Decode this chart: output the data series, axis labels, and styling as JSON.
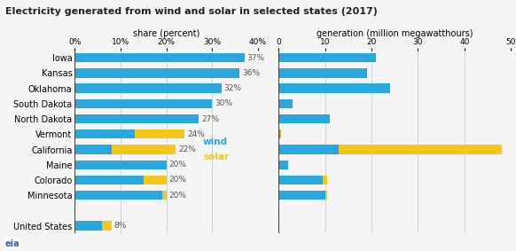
{
  "title": "Electricity generated from wind and solar in selected states (2017)",
  "states": [
    "Iowa",
    "Kansas",
    "Oklahoma",
    "South Dakota",
    "North Dakota",
    "Vermont",
    "California",
    "Maine",
    "Colorado",
    "Minnesota",
    "",
    "United States"
  ],
  "share_wind": [
    37,
    36,
    32,
    30,
    27,
    13,
    8,
    20,
    15,
    19,
    0,
    6
  ],
  "share_solar": [
    0,
    0,
    0,
    0,
    0,
    11,
    14,
    0,
    5,
    1,
    0,
    2
  ],
  "share_labels": [
    "37%",
    "36%",
    "32%",
    "30%",
    "27%",
    "24%",
    "22%",
    "20%",
    "20%",
    "20%",
    "",
    "8%"
  ],
  "gen_wind": [
    21,
    19,
    24,
    3,
    11,
    0.3,
    13,
    2,
    9.5,
    10,
    0,
    0
  ],
  "gen_solar": [
    0,
    0,
    0,
    0,
    0,
    0.2,
    35,
    0,
    1,
    0.5,
    0,
    0
  ],
  "wind_color": "#29a8e0",
  "solar_color": "#f5c518",
  "background_color": "#f5f5f5",
  "grid_color": "#cccccc",
  "share_xlabel": "share (percent)",
  "gen_xlabel": "generation (million megawatthours)",
  "share_xlim": [
    0,
    40
  ],
  "gen_xlim": [
    0,
    50
  ],
  "share_xticks": [
    0,
    10,
    20,
    30,
    40
  ],
  "share_xticklabels": [
    "0%",
    "10%",
    "20%",
    "30%",
    "40%"
  ],
  "gen_xticks": [
    0,
    10,
    20,
    30,
    40,
    50
  ],
  "gen_xticklabels": [
    "0",
    "10",
    "20",
    "30",
    "40",
    "50"
  ],
  "legend_wind": "wind",
  "legend_solar": "solar"
}
